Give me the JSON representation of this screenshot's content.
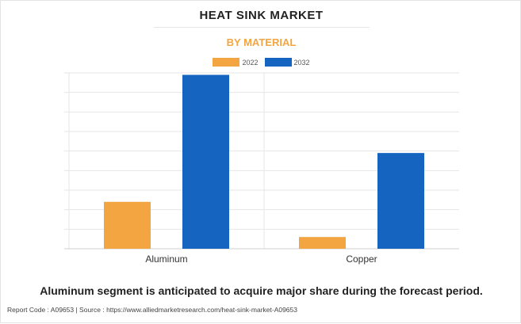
{
  "title": "HEAT SINK MARKET",
  "subtitle": "BY MATERIAL",
  "caption": "Aluminum segment is anticipated to acquire major share during the forecast period.",
  "footer": "Report Code : A09653  |  Source : https://www.alliedmarketresearch.com/heat-sink-market-A09653",
  "colors": {
    "accent": "#f2a541",
    "series_2022": "#f2a541",
    "series_2032": "#1565c0",
    "grid": "#e6e6e6"
  },
  "chart_data": {
    "type": "bar",
    "title": "HEAT SINK MARKET",
    "subtitle": "BY MATERIAL",
    "categories": [
      "Aluminum",
      "Copper"
    ],
    "series": [
      {
        "name": "2022",
        "values": [
          2.4,
          0.6
        ]
      },
      {
        "name": "2032",
        "values": [
          8.9,
          4.9
        ]
      }
    ],
    "ylim": [
      0,
      9
    ],
    "xlabel": "",
    "ylabel": "",
    "grid": true,
    "legend": "top-center"
  }
}
